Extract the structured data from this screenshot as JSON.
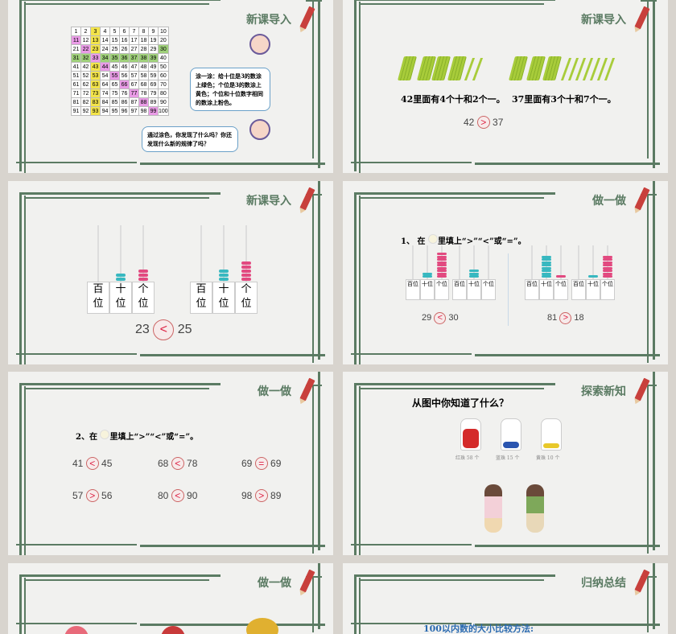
{
  "slides": [
    {
      "title": "新课导入",
      "bubble1": "涂一涂：给十位是3的数涂上绿色；个位是3的数涂上黄色；个位和十位数字相同的数涂上粉色。",
      "bubble2": "通过涂色，你发现了什么吗？你还发现什么新的规律了吗？"
    },
    {
      "title": "新课导入",
      "sentence1": "42里面有4个十和2个一。",
      "sentence2": "37里面有3个十和7个一。",
      "left": "42",
      "sign": ">",
      "right": "37"
    },
    {
      "title": "新课导入",
      "places": [
        "百\n位",
        "十\n位",
        "个\n位"
      ],
      "left": "23",
      "sign": "<",
      "right": "25"
    },
    {
      "title": "做一做",
      "instruction_pre": "1、 在",
      "instruction_post": "里填上“>”“<”或“=”。",
      "places": [
        "百位",
        "十位",
        "个位"
      ],
      "cmp1": {
        "l": "29",
        "s": "<",
        "r": "30"
      },
      "cmp2": {
        "l": "81",
        "s": ">",
        "r": "18"
      }
    },
    {
      "title": "做一做",
      "instruction_pre": "2、在",
      "instruction_post": "里填上“>”“<”或“=”。",
      "items": [
        {
          "l": "41",
          "s": "<",
          "r": "45"
        },
        {
          "l": "68",
          "s": "<",
          "r": "78"
        },
        {
          "l": "69",
          "s": "=",
          "r": "69"
        },
        {
          "l": "57",
          "s": ">",
          "r": "56"
        },
        {
          "l": "80",
          "s": "<",
          "r": "90"
        },
        {
          "l": "98",
          "s": ">",
          "r": "89"
        }
      ]
    },
    {
      "title": "探索新知",
      "question": "从图中你知道了什么？",
      "jars": [
        {
          "label": "红珠 58 个",
          "color": "#d42a2a"
        },
        {
          "label": "蓝珠 15 个",
          "color": "#2a55b0"
        },
        {
          "label": "黄珠 10 个",
          "color": "#e8c82a"
        }
      ]
    },
    {
      "title": "做一做"
    },
    {
      "title": "归纳总结",
      "subtitle": "100以内数的大小比较方法:"
    }
  ],
  "colors": {
    "frame": "#5b7b63",
    "accent": "#d42a2a"
  }
}
